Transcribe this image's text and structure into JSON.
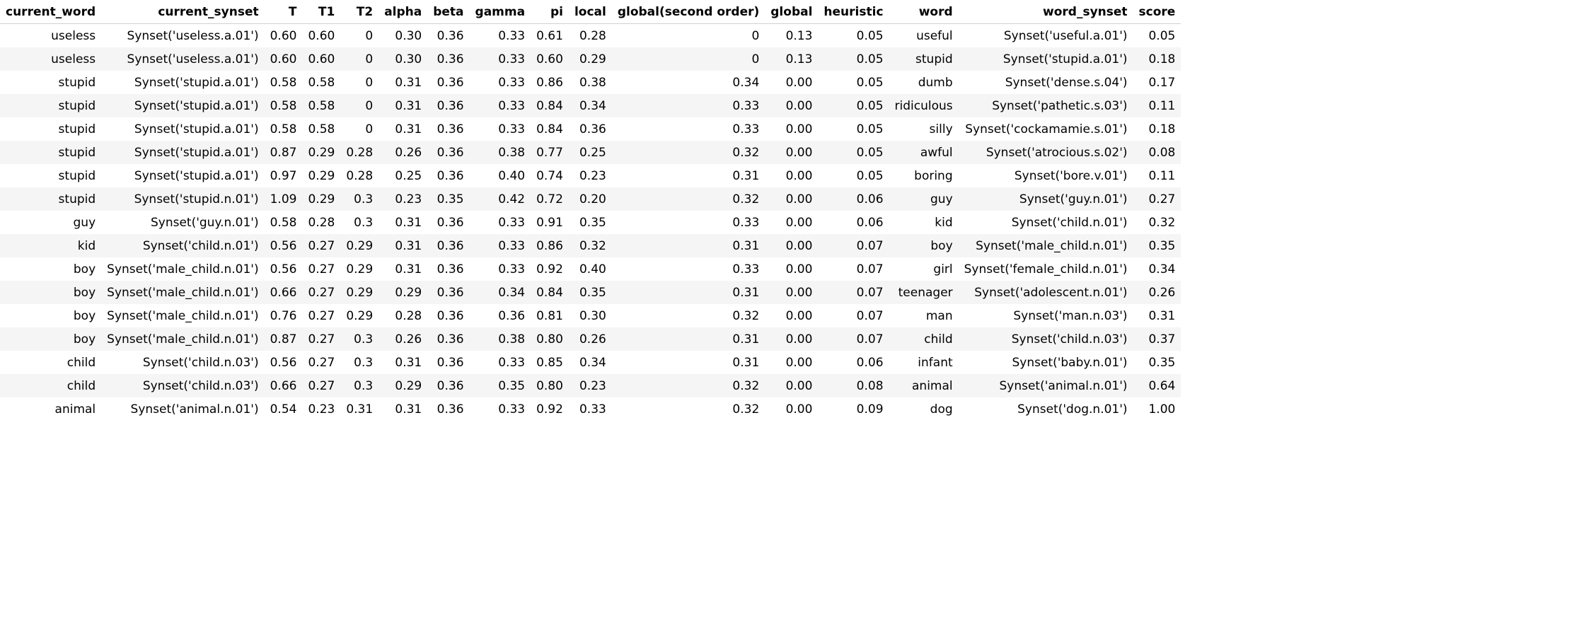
{
  "table": {
    "columns": [
      "current_word",
      "current_synset",
      "T",
      "T1",
      "T2",
      "alpha",
      "beta",
      "gamma",
      "pi",
      "local",
      "global(second order)",
      "global",
      "heuristic",
      "word",
      "word_synset",
      "score"
    ],
    "rows": [
      [
        "useless",
        "Synset('useless.a.01')",
        "0.60",
        "0.60",
        "0",
        "0.30",
        "0.36",
        "0.33",
        "0.61",
        "0.28",
        "0",
        "0.13",
        "0.05",
        "useful",
        "Synset('useful.a.01')",
        "0.05"
      ],
      [
        "useless",
        "Synset('useless.a.01')",
        "0.60",
        "0.60",
        "0",
        "0.30",
        "0.36",
        "0.33",
        "0.60",
        "0.29",
        "0",
        "0.13",
        "0.05",
        "stupid",
        "Synset('stupid.a.01')",
        "0.18"
      ],
      [
        "stupid",
        "Synset('stupid.a.01')",
        "0.58",
        "0.58",
        "0",
        "0.31",
        "0.36",
        "0.33",
        "0.86",
        "0.38",
        "0.34",
        "0.00",
        "0.05",
        "dumb",
        "Synset('dense.s.04')",
        "0.17"
      ],
      [
        "stupid",
        "Synset('stupid.a.01')",
        "0.58",
        "0.58",
        "0",
        "0.31",
        "0.36",
        "0.33",
        "0.84",
        "0.34",
        "0.33",
        "0.00",
        "0.05",
        "ridiculous",
        "Synset('pathetic.s.03')",
        "0.11"
      ],
      [
        "stupid",
        "Synset('stupid.a.01')",
        "0.58",
        "0.58",
        "0",
        "0.31",
        "0.36",
        "0.33",
        "0.84",
        "0.36",
        "0.33",
        "0.00",
        "0.05",
        "silly",
        "Synset('cockamamie.s.01')",
        "0.18"
      ],
      [
        "stupid",
        "Synset('stupid.a.01')",
        "0.87",
        "0.29",
        "0.28",
        "0.26",
        "0.36",
        "0.38",
        "0.77",
        "0.25",
        "0.32",
        "0.00",
        "0.05",
        "awful",
        "Synset('atrocious.s.02')",
        "0.08"
      ],
      [
        "stupid",
        "Synset('stupid.a.01')",
        "0.97",
        "0.29",
        "0.28",
        "0.25",
        "0.36",
        "0.40",
        "0.74",
        "0.23",
        "0.31",
        "0.00",
        "0.05",
        "boring",
        "Synset('bore.v.01')",
        "0.11"
      ],
      [
        "stupid",
        "Synset('stupid.n.01')",
        "1.09",
        "0.29",
        "0.3",
        "0.23",
        "0.35",
        "0.42",
        "0.72",
        "0.20",
        "0.32",
        "0.00",
        "0.06",
        "guy",
        "Synset('guy.n.01')",
        "0.27"
      ],
      [
        "guy",
        "Synset('guy.n.01')",
        "0.58",
        "0.28",
        "0.3",
        "0.31",
        "0.36",
        "0.33",
        "0.91",
        "0.35",
        "0.33",
        "0.00",
        "0.06",
        "kid",
        "Synset('child.n.01')",
        "0.32"
      ],
      [
        "kid",
        "Synset('child.n.01')",
        "0.56",
        "0.27",
        "0.29",
        "0.31",
        "0.36",
        "0.33",
        "0.86",
        "0.32",
        "0.31",
        "0.00",
        "0.07",
        "boy",
        "Synset('male_child.n.01')",
        "0.35"
      ],
      [
        "boy",
        "Synset('male_child.n.01')",
        "0.56",
        "0.27",
        "0.29",
        "0.31",
        "0.36",
        "0.33",
        "0.92",
        "0.40",
        "0.33",
        "0.00",
        "0.07",
        "girl",
        "Synset('female_child.n.01')",
        "0.34"
      ],
      [
        "boy",
        "Synset('male_child.n.01')",
        "0.66",
        "0.27",
        "0.29",
        "0.29",
        "0.36",
        "0.34",
        "0.84",
        "0.35",
        "0.31",
        "0.00",
        "0.07",
        "teenager",
        "Synset('adolescent.n.01')",
        "0.26"
      ],
      [
        "boy",
        "Synset('male_child.n.01')",
        "0.76",
        "0.27",
        "0.29",
        "0.28",
        "0.36",
        "0.36",
        "0.81",
        "0.30",
        "0.32",
        "0.00",
        "0.07",
        "man",
        "Synset('man.n.03')",
        "0.31"
      ],
      [
        "boy",
        "Synset('male_child.n.01')",
        "0.87",
        "0.27",
        "0.3",
        "0.26",
        "0.36",
        "0.38",
        "0.80",
        "0.26",
        "0.31",
        "0.00",
        "0.07",
        "child",
        "Synset('child.n.03')",
        "0.37"
      ],
      [
        "child",
        "Synset('child.n.03')",
        "0.56",
        "0.27",
        "0.3",
        "0.31",
        "0.36",
        "0.33",
        "0.85",
        "0.34",
        "0.31",
        "0.00",
        "0.06",
        "infant",
        "Synset('baby.n.01')",
        "0.35"
      ],
      [
        "child",
        "Synset('child.n.03')",
        "0.66",
        "0.27",
        "0.3",
        "0.29",
        "0.36",
        "0.35",
        "0.80",
        "0.23",
        "0.32",
        "0.00",
        "0.08",
        "animal",
        "Synset('animal.n.01')",
        "0.64"
      ],
      [
        "animal",
        "Synset('animal.n.01')",
        "0.54",
        "0.23",
        "0.31",
        "0.31",
        "0.36",
        "0.33",
        "0.92",
        "0.33",
        "0.32",
        "0.00",
        "0.09",
        "dog",
        "Synset('dog.n.01')",
        "1.00"
      ]
    ]
  }
}
